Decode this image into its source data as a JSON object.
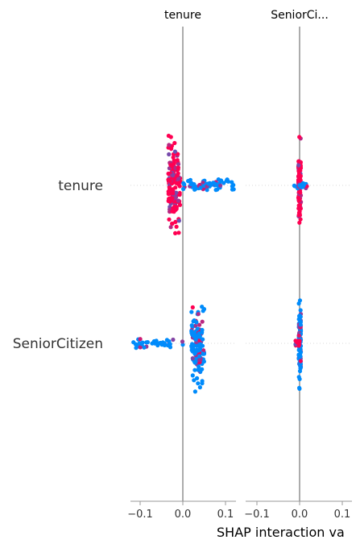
{
  "chart_data": {
    "type": "scatter",
    "kind": "shap-interaction-beeswarm",
    "features": [
      "tenure",
      "SeniorCitizen"
    ],
    "panel_titles": [
      "tenure",
      "SeniorCi..."
    ],
    "xlabel": "SHAP interaction va",
    "xlim": [
      -0.125,
      0.125
    ],
    "xticks": [
      "−0.1",
      "0.0",
      "0.1"
    ],
    "xtick_values": [
      -0.1,
      0.0,
      0.1
    ],
    "colors": {
      "low": "#008bfb",
      "high": "#ff0052",
      "axis": "#999999",
      "zero_line": "#888888"
    },
    "panels": [
      {
        "title": "tenure",
        "rows": [
          {
            "feature": "tenure",
            "clusters": [
              {
                "center": -0.02,
                "spread": 0.012,
                "value_range": [
                  -0.034,
                  -0.006
                ],
                "vspread": 70,
                "color": "high",
                "n": 150
              },
              {
                "center": 0.06,
                "spread": 0.06,
                "value_range": 0.0,
                "vspread": 10,
                "color": "low",
                "n": 70
              }
            ]
          },
          {
            "feature": "SeniorCitizen",
            "clusters": [
              {
                "center": 0.035,
                "spread": 0.035,
                "value_range": [
                  0.02,
                  0.05
                ],
                "vspread": 65,
                "color": "low",
                "n": 140
              },
              {
                "center": -0.06,
                "spread": 0.06,
                "value_range": 0.0,
                "vspread": 8,
                "color": "low",
                "n": 40
              }
            ]
          }
        ]
      },
      {
        "title": "SeniorCi...",
        "rows": [
          {
            "feature": "tenure",
            "clusters": [
              {
                "center": 0.0,
                "spread": 0.003,
                "value_range": [
                  -0.003,
                  0.003
                ],
                "vspread": 68,
                "color": "high",
                "n": 110
              },
              {
                "center": 0.004,
                "spread": 0.018,
                "value_range": 0.0,
                "vspread": 5,
                "color": "low",
                "n": 20
              }
            ]
          },
          {
            "feature": "SeniorCitizen",
            "clusters": [
              {
                "center": 0.001,
                "spread": 0.002,
                "value_range": [
                  -0.002,
                  0.003
                ],
                "vspread": 68,
                "color": "low",
                "n": 110
              },
              {
                "center": -0.004,
                "spread": 0.006,
                "value_range": 0.0,
                "vspread": 5,
                "color": "high",
                "n": 15
              }
            ]
          }
        ]
      }
    ]
  }
}
